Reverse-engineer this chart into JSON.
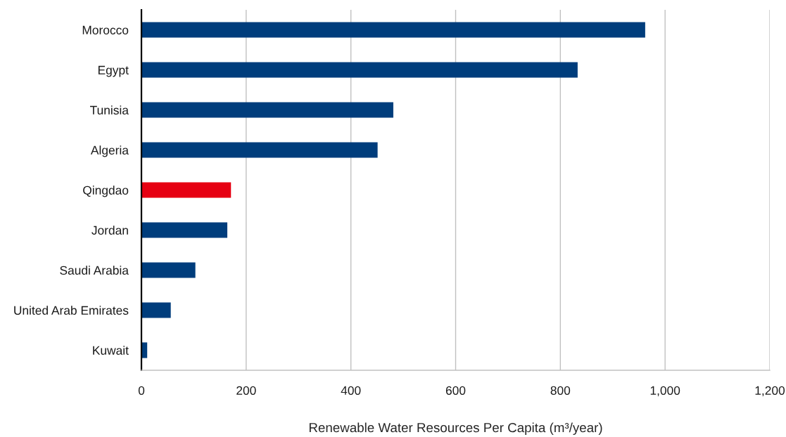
{
  "chart_data": {
    "type": "bar",
    "orientation": "horizontal",
    "xlabel": "Renewable Water Resources Per Capita (m³/year)",
    "categories": [
      "Morocco",
      "Egypt",
      "Tunisia",
      "Algeria",
      "Qingdao",
      "Jordan",
      "Saudi Arabia",
      "United Arab Emirates",
      "Kuwait"
    ],
    "values": [
      962,
      833,
      481,
      451,
      171,
      164,
      103,
      56,
      11
    ],
    "colors": [
      "#003d7c",
      "#003d7c",
      "#003d7c",
      "#003d7c",
      "#e60012",
      "#003d7c",
      "#003d7c",
      "#003d7c",
      "#003d7c"
    ],
    "xlim": [
      0,
      1200
    ],
    "xticks": [
      0,
      200,
      400,
      600,
      800,
      {
        "value": 1000,
        "label": "1,000"
      },
      {
        "value": 1200,
        "label": "1,200"
      }
    ],
    "grid": "x"
  }
}
